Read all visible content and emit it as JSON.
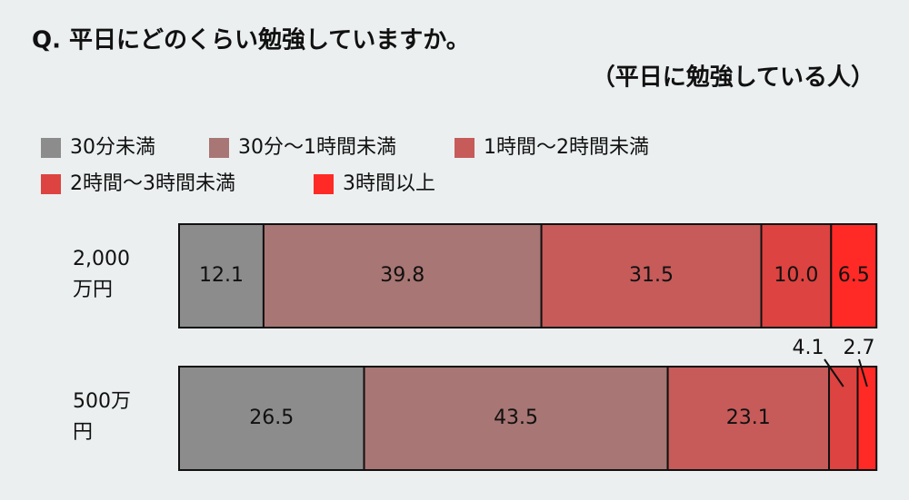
{
  "chart_data": {
    "type": "stacked-bar-horizontal",
    "title": "Q.  平日にどのくらい勉強していますか。",
    "subtitle": "（平日に勉強している人）",
    "categories": [
      "2,000万円",
      "500万円"
    ],
    "series": [
      {
        "name": "30分未満",
        "color": "#8c8c8c",
        "values": [
          12.1,
          26.5
        ]
      },
      {
        "name": "30分～1時間未満",
        "color": "#a87674",
        "values": [
          39.8,
          43.5
        ]
      },
      {
        "name": "1時間～2時間未満",
        "color": "#c65b5a",
        "values": [
          31.5,
          23.1
        ]
      },
      {
        "name": "2時間～3時間未満",
        "color": "#dd4340",
        "values": [
          10.0,
          4.1
        ],
        "value_labels": [
          "10.0",
          "4.1"
        ]
      },
      {
        "name": "3時間以上",
        "color": "#ff2a26",
        "values": [
          6.5,
          2.7
        ]
      }
    ],
    "xlim": [
      0,
      100
    ]
  }
}
